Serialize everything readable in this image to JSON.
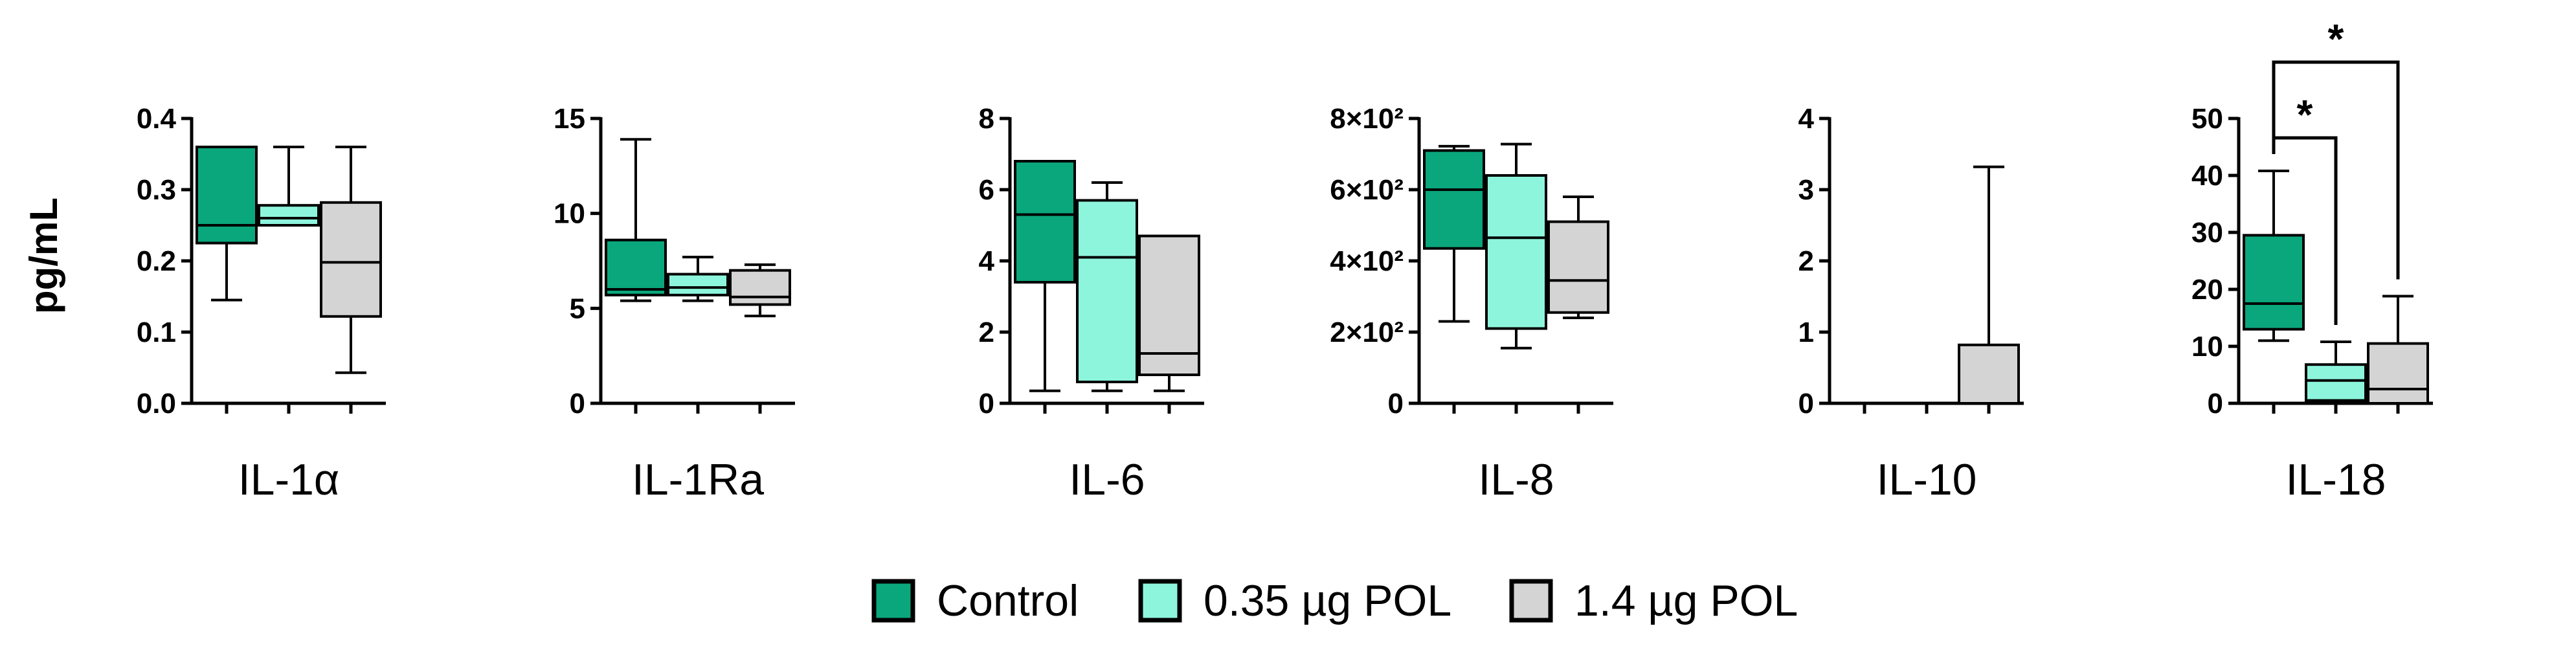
{
  "chart_data": {
    "type": "boxplot",
    "ylabel": "pg/mL",
    "groups": [
      {
        "name": "Control",
        "color": "#0aa67c"
      },
      {
        "name": "0.35 µg POL",
        "color": "#8ef5dd"
      },
      {
        "name": "1.4 µg POL",
        "color": "#d4d4d4"
      }
    ],
    "panels": [
      {
        "title": "IL-1α",
        "ylim": [
          0,
          0.4
        ],
        "ticks": [
          {
            "value": 0.0,
            "label": "0.0"
          },
          {
            "value": 0.1,
            "label": "0.1"
          },
          {
            "value": 0.2,
            "label": "0.2"
          },
          {
            "value": 0.3,
            "label": "0.3"
          },
          {
            "value": 0.4,
            "label": "0.4"
          }
        ],
        "boxes": [
          {
            "min": 0.145,
            "q1": 0.225,
            "median": 0.25,
            "q3": 0.36,
            "max": 0.36
          },
          {
            "min": 0.25,
            "q1": 0.25,
            "median": 0.26,
            "q3": 0.278,
            "max": 0.36
          },
          {
            "min": 0.043,
            "q1": 0.122,
            "median": 0.198,
            "q3": 0.282,
            "max": 0.36
          }
        ],
        "brackets": []
      },
      {
        "title": "IL-1Ra",
        "ylim": [
          0,
          15
        ],
        "ticks": [
          {
            "value": 0,
            "label": "0"
          },
          {
            "value": 5,
            "label": "5"
          },
          {
            "value": 10,
            "label": "10"
          },
          {
            "value": 15,
            "label": "15"
          }
        ],
        "boxes": [
          {
            "min": 5.4,
            "q1": 5.7,
            "median": 6.0,
            "q3": 8.6,
            "max": 13.9
          },
          {
            "min": 5.4,
            "q1": 5.7,
            "median": 6.1,
            "q3": 6.8,
            "max": 7.7
          },
          {
            "min": 4.6,
            "q1": 5.2,
            "median": 5.6,
            "q3": 7.0,
            "max": 7.3
          }
        ],
        "brackets": []
      },
      {
        "title": "IL-6",
        "ylim": [
          0,
          8
        ],
        "ticks": [
          {
            "value": 0,
            "label": "0"
          },
          {
            "value": 2,
            "label": "2"
          },
          {
            "value": 4,
            "label": "4"
          },
          {
            "value": 6,
            "label": "6"
          },
          {
            "value": 8,
            "label": "8"
          }
        ],
        "boxes": [
          {
            "min": 0.35,
            "q1": 3.4,
            "median": 5.3,
            "q3": 6.8,
            "max": 6.8
          },
          {
            "min": 0.35,
            "q1": 0.6,
            "median": 4.1,
            "q3": 5.7,
            "max": 6.2
          },
          {
            "min": 0.35,
            "q1": 0.8,
            "median": 1.4,
            "q3": 4.7,
            "max": 4.7
          }
        ],
        "brackets": []
      },
      {
        "title": "IL-8",
        "ylim": [
          0,
          800
        ],
        "ticks": [
          {
            "value": 0,
            "label": "0"
          },
          {
            "value": 200,
            "label": "2×10²"
          },
          {
            "value": 400,
            "label": "4×10²"
          },
          {
            "value": 600,
            "label": "6×10²"
          },
          {
            "value": 800,
            "label": "8×10²"
          }
        ],
        "boxes": [
          {
            "min": 230,
            "q1": 435,
            "median": 600,
            "q3": 710,
            "max": 722
          },
          {
            "min": 155,
            "q1": 210,
            "median": 465,
            "q3": 640,
            "max": 728
          },
          {
            "min": 240,
            "q1": 255,
            "median": 345,
            "q3": 510,
            "max": 580
          }
        ],
        "brackets": []
      },
      {
        "title": "IL-10",
        "ylim": [
          0,
          4
        ],
        "ticks": [
          {
            "value": 0,
            "label": "0"
          },
          {
            "value": 1,
            "label": "1"
          },
          {
            "value": 2,
            "label": "2"
          },
          {
            "value": 3,
            "label": "3"
          },
          {
            "value": 4,
            "label": "4"
          }
        ],
        "boxes": [
          {
            "min": 0,
            "q1": 0,
            "median": 0,
            "q3": 0,
            "max": 0
          },
          {
            "min": 0,
            "q1": 0,
            "median": 0,
            "q3": 0,
            "max": 0
          },
          {
            "min": 0,
            "q1": 0,
            "median": 0,
            "q3": 0.82,
            "max": 3.32
          }
        ],
        "brackets": []
      },
      {
        "title": "IL-18",
        "ylim": [
          0,
          50
        ],
        "ticks": [
          {
            "value": 0,
            "label": "0"
          },
          {
            "value": 10,
            "label": "10"
          },
          {
            "value": 20,
            "label": "20"
          },
          {
            "value": 30,
            "label": "30"
          },
          {
            "value": 40,
            "label": "40"
          },
          {
            "value": 50,
            "label": "50"
          }
        ],
        "boxes": [
          {
            "min": 11,
            "q1": 13,
            "median": 17.5,
            "q3": 29.5,
            "max": 40.8
          },
          {
            "min": 0,
            "q1": 0.5,
            "median": 4,
            "q3": 6.8,
            "max": 10.8
          },
          {
            "min": 0,
            "q1": 0,
            "median": 2.5,
            "q3": 10.5,
            "max": 18.8
          }
        ],
        "brackets": [
          {
            "from": 0,
            "to": 1,
            "label": "*"
          },
          {
            "from": 0,
            "to": 2,
            "label": "*"
          }
        ]
      }
    ]
  }
}
